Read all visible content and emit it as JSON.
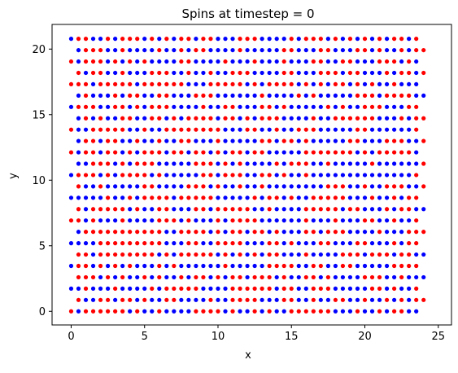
{
  "chart_data": {
    "type": "scatter",
    "title": "Spins at timestep = 0",
    "xlabel": "x",
    "ylabel": "y",
    "xlim": [
      -1.3,
      25.9
    ],
    "ylim": [
      -1.04,
      21.88
    ],
    "xticks": [
      0,
      5,
      10,
      15,
      20,
      25
    ],
    "yticks": [
      0,
      5,
      10,
      15,
      20
    ],
    "grid": false,
    "marker": "circle",
    "lattice": {
      "rows": 25,
      "cols": 24,
      "a": 1,
      "row_spacing": 0.866,
      "odd_row_offset": 0.5,
      "sublattice_offset": 0.5,
      "layout": "honeycomb",
      "origin": [
        0,
        0
      ]
    },
    "series": [
      {
        "color": "#0000ff",
        "label_value": 1
      },
      {
        "color": "#ff0000",
        "label_value": -1
      }
    ]
  }
}
